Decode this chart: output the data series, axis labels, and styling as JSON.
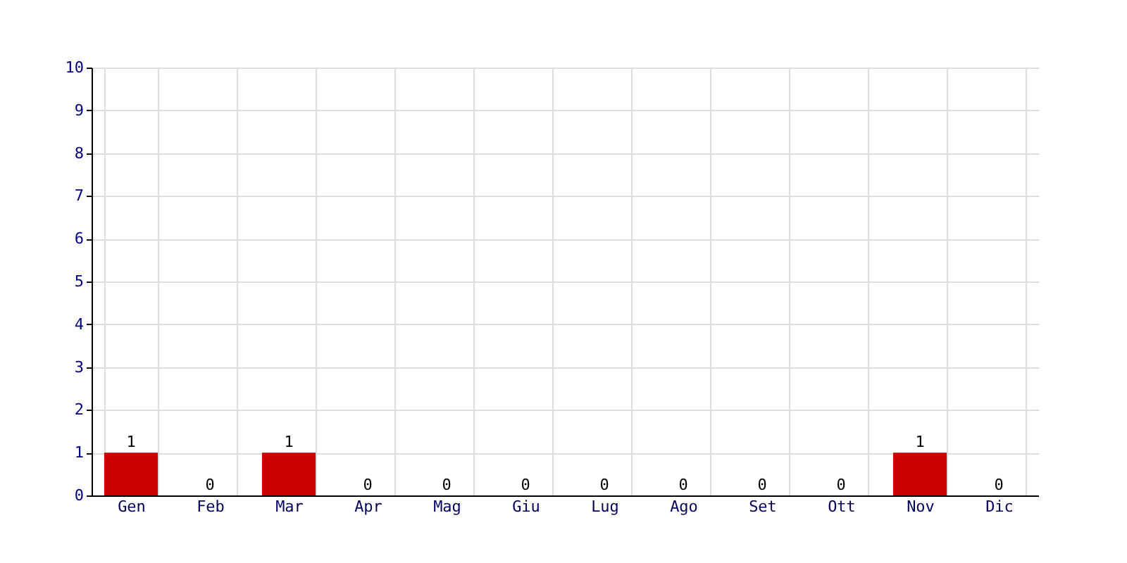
{
  "chart_data": {
    "type": "bar",
    "categories": [
      "Gen",
      "Feb",
      "Mar",
      "Apr",
      "Mag",
      "Giu",
      "Lug",
      "Ago",
      "Set",
      "Ott",
      "Nov",
      "Dic"
    ],
    "values": [
      1,
      0,
      1,
      0,
      0,
      0,
      0,
      0,
      0,
      0,
      1,
      0
    ],
    "color": "#cc0000",
    "ylim": [
      0,
      10
    ],
    "yticks": [
      0,
      1,
      2,
      3,
      4,
      5,
      6,
      7,
      8,
      9,
      10
    ],
    "grid": true,
    "data_labels": true
  }
}
